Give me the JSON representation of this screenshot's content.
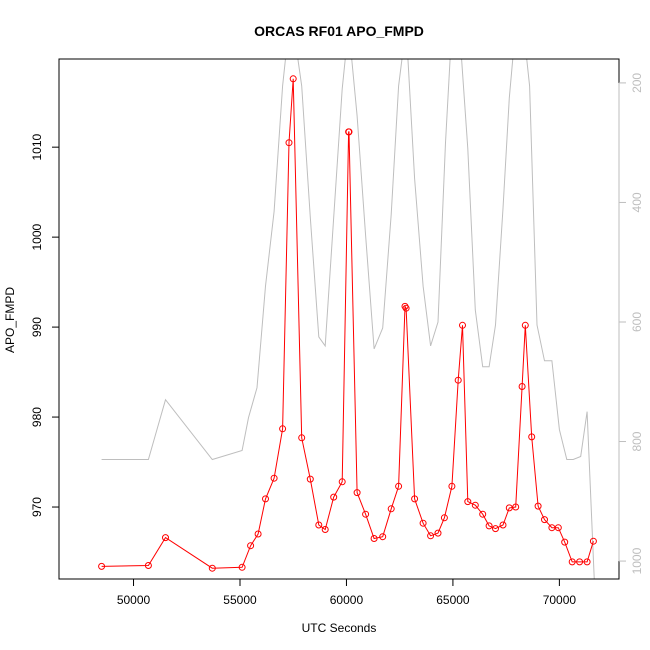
{
  "chart_data": {
    "type": "line",
    "title": "ORCAS RF01 APO_FMPD",
    "xlabel": "UTC Seconds",
    "ylabel": "APO_FMPD",
    "xlim": [
      46500,
      72800
    ],
    "ylim": [
      962,
      1019.8
    ],
    "x_ticks": [
      50000,
      55000,
      60000,
      65000,
      70000
    ],
    "y_ticks": [
      970,
      980,
      990,
      1000,
      1010
    ],
    "right_axis": {
      "lim": [
        1030,
        160
      ],
      "ticks": [
        200,
        400,
        600,
        800,
        1000
      ]
    },
    "series": [
      {
        "color": "#ff0000",
        "marker": "open-circle",
        "axis": "left",
        "x": [
          48500,
          50700,
          51500,
          53700,
          55100,
          55500,
          55850,
          56200,
          56600,
          57000,
          57300,
          57500,
          57900,
          58300,
          58700,
          59000,
          59400,
          59800,
          60100,
          60120,
          60500,
          60900,
          61300,
          61700,
          62100,
          62450,
          62750,
          62800,
          63200,
          63600,
          63950,
          64300,
          64600,
          64950,
          65250,
          65450,
          65700,
          66050,
          66400,
          66700,
          67000,
          67350,
          67650,
          67950,
          68250,
          68400,
          68700,
          69000,
          69300,
          69650,
          69950,
          70250,
          70600,
          70950,
          71300,
          71600
        ],
        "y": [
          963.4,
          963.5,
          966.6,
          963.2,
          963.3,
          965.7,
          967.0,
          970.9,
          973.2,
          978.7,
          1010.5,
          1017.6,
          977.7,
          973.1,
          968.0,
          967.5,
          971.1,
          972.8,
          1011.7,
          1011.7,
          971.6,
          969.2,
          966.5,
          966.7,
          969.8,
          972.3,
          992.3,
          992.1,
          970.9,
          968.2,
          966.8,
          967.1,
          968.8,
          972.3,
          984.1,
          990.2,
          970.6,
          970.2,
          969.2,
          967.9,
          967.6,
          968.0,
          969.9,
          970.0,
          983.4,
          990.2,
          977.8,
          970.1,
          968.6,
          967.7,
          967.7,
          966.1,
          963.9,
          963.9,
          963.9,
          966.2
        ]
      },
      {
        "color": "#bebebe",
        "marker": "none",
        "axis": "right",
        "x": [
          48500,
          50700,
          51500,
          53700,
          55100,
          55400,
          55800,
          56200,
          56600,
          57000,
          57300,
          57500,
          57900,
          58300,
          58700,
          59000,
          59400,
          59800,
          60100,
          60500,
          60900,
          61300,
          61700,
          62100,
          62450,
          62800,
          63200,
          63600,
          63950,
          64300,
          64650,
          64950,
          65300,
          65700,
          66050,
          66400,
          66700,
          67000,
          67350,
          67650,
          67950,
          68300,
          68600,
          68950,
          69300,
          69650,
          70000,
          70350,
          70650,
          71000,
          71300,
          71650
        ],
        "y": [
          830,
          830,
          730,
          830,
          815,
          760,
          710,
          540,
          415,
          205,
          105,
          105,
          205,
          425,
          625,
          640,
          425,
          210,
          105,
          255,
          455,
          645,
          610,
          420,
          205,
          105,
          360,
          540,
          640,
          600,
          300,
          105,
          105,
          310,
          580,
          675,
          675,
          605,
          410,
          225,
          105,
          105,
          205,
          605,
          665,
          665,
          780,
          830,
          830,
          825,
          750,
          1040
        ]
      }
    ]
  }
}
